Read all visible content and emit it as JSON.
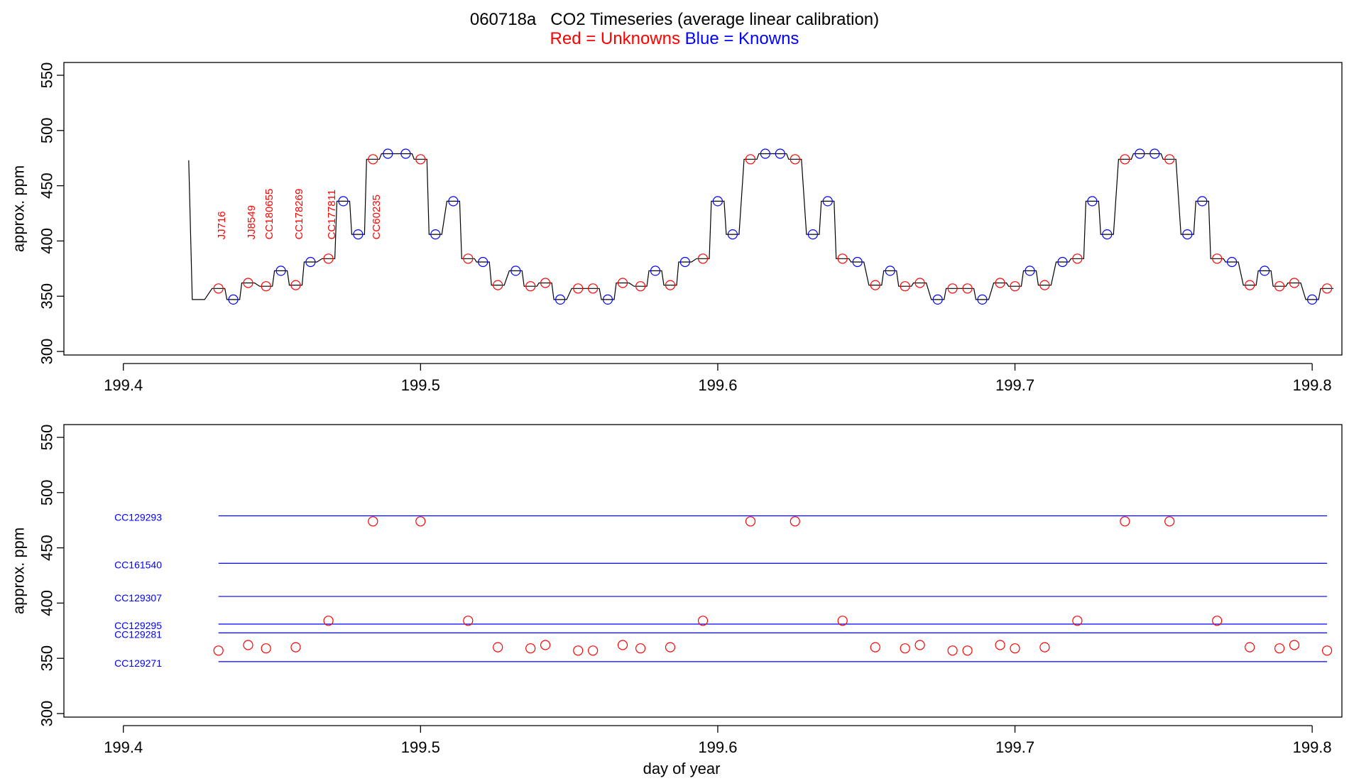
{
  "header": {
    "title": "060718a   CO2 Timeseries (average linear calibration)",
    "subtitle_red": "Red = Unknowns",
    "subtitle_blue": "Blue = Knowns"
  },
  "colors": {
    "unknown": "#ff0000",
    "known": "#0000ff",
    "trace": "#000000",
    "axis": "#000000"
  },
  "chart_data": [
    {
      "type": "line",
      "title": "",
      "xlabel": "",
      "ylabel": "approx. ppm",
      "xlim": [
        199.38,
        199.81
      ],
      "ylim": [
        300,
        550
      ],
      "x_ticks": [
        199.4,
        199.5,
        199.6,
        199.7,
        199.8
      ],
      "x_tick_labels": [
        "199.4",
        "199.5",
        "199.6",
        "199.7",
        "199.8"
      ],
      "y_ticks": [
        300,
        350,
        400,
        450,
        500,
        550
      ],
      "y_tick_labels": [
        "300",
        "350",
        "400",
        "450",
        "500",
        "550"
      ],
      "series": [
        {
          "name": "Unknowns",
          "color": "#ff0000",
          "x": [
            199.432,
            199.442,
            199.448,
            199.458,
            199.469,
            199.484,
            199.5,
            199.516,
            199.526,
            199.537,
            199.542,
            199.553,
            199.558,
            199.568,
            199.574,
            199.584,
            199.595,
            199.611,
            199.626,
            199.642,
            199.653,
            199.663,
            199.668,
            199.679,
            199.684,
            199.695,
            199.7,
            199.71,
            199.721,
            199.737,
            199.752,
            199.768,
            199.779,
            199.789,
            199.794,
            199.805
          ],
          "y": [
            357,
            362,
            359,
            360,
            384,
            474,
            474,
            384,
            360,
            359,
            362,
            357,
            357,
            362,
            359,
            360,
            384,
            474,
            474,
            384,
            360,
            359,
            362,
            357,
            357,
            362,
            359,
            360,
            384,
            474,
            474,
            384,
            360,
            359,
            362,
            357
          ]
        },
        {
          "name": "Knowns",
          "color": "#0000ff",
          "x": [
            199.437,
            199.453,
            199.463,
            199.474,
            199.479,
            199.489,
            199.495,
            199.505,
            199.511,
            199.521,
            199.532,
            199.547,
            199.563,
            199.579,
            199.589,
            199.6,
            199.605,
            199.616,
            199.621,
            199.632,
            199.637,
            199.647,
            199.658,
            199.674,
            199.689,
            199.705,
            199.716,
            199.726,
            199.731,
            199.742,
            199.747,
            199.758,
            199.763,
            199.773,
            199.784,
            199.8
          ],
          "y": [
            347,
            373,
            381,
            436,
            406,
            479,
            479,
            406,
            436,
            381,
            373,
            347,
            347,
            373,
            381,
            436,
            406,
            479,
            479,
            406,
            436,
            381,
            373,
            347,
            347,
            373,
            381,
            436,
            406,
            479,
            479,
            406,
            436,
            381,
            373,
            347
          ]
        }
      ],
      "trace_start": [
        199.422,
        473
      ],
      "annotations": [
        {
          "text": "JJ716",
          "x": 199.433,
          "y": 400
        },
        {
          "text": "JJ8549",
          "x": 199.443,
          "y": 400
        },
        {
          "text": "CC180655",
          "x": 199.449,
          "y": 400
        },
        {
          "text": "CC178269",
          "x": 199.459,
          "y": 400
        },
        {
          "text": "CC177811",
          "x": 199.47,
          "y": 400
        },
        {
          "text": "CC60235",
          "x": 199.485,
          "y": 400
        }
      ]
    },
    {
      "type": "scatter",
      "title": "",
      "xlabel": "day of year",
      "ylabel": "approx. ppm",
      "xlim": [
        199.38,
        199.81
      ],
      "ylim": [
        300,
        550
      ],
      "x_ticks": [
        199.4,
        199.5,
        199.6,
        199.7,
        199.8
      ],
      "x_tick_labels": [
        "199.4",
        "199.5",
        "199.6",
        "199.7",
        "199.8"
      ],
      "y_ticks": [
        300,
        350,
        400,
        450,
        500,
        550
      ],
      "y_tick_labels": [
        "300",
        "350",
        "400",
        "450",
        "500",
        "550"
      ],
      "series": [
        {
          "name": "Unknowns",
          "color": "#ff0000",
          "x": [
            199.432,
            199.442,
            199.448,
            199.458,
            199.469,
            199.484,
            199.5,
            199.516,
            199.526,
            199.537,
            199.542,
            199.553,
            199.558,
            199.568,
            199.574,
            199.584,
            199.595,
            199.611,
            199.626,
            199.642,
            199.653,
            199.663,
            199.668,
            199.679,
            199.684,
            199.695,
            199.7,
            199.71,
            199.721,
            199.737,
            199.752,
            199.768,
            199.779,
            199.789,
            199.794,
            199.805
          ],
          "y": [
            357,
            362,
            359,
            360,
            384,
            474,
            474,
            384,
            360,
            359,
            362,
            357,
            357,
            362,
            359,
            360,
            384,
            474,
            474,
            384,
            360,
            359,
            362,
            357,
            357,
            362,
            359,
            360,
            384,
            474,
            474,
            384,
            360,
            359,
            362,
            357
          ]
        }
      ],
      "reference_lines": [
        {
          "label": "CC129293",
          "value": 479,
          "color": "#0000ff"
        },
        {
          "label": "CC161540",
          "value": 436,
          "color": "#0000ff"
        },
        {
          "label": "CC129307",
          "value": 406,
          "color": "#0000ff"
        },
        {
          "label": "CC129295",
          "value": 381,
          "color": "#0000ff"
        },
        {
          "label": "CC129281",
          "value": 373,
          "color": "#0000ff"
        },
        {
          "label": "CC129271",
          "value": 347,
          "color": "#0000ff"
        }
      ],
      "reference_x_range": [
        199.432,
        199.805
      ]
    }
  ]
}
